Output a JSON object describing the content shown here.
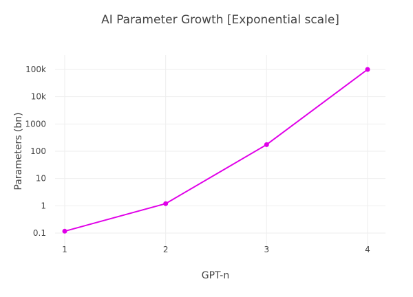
{
  "chart_data": {
    "type": "line",
    "title": "AI Parameter Growth [Exponential scale]",
    "xlabel": "GPT-n",
    "ylabel": "Parameters (bn)",
    "x": [
      1,
      2,
      3,
      4
    ],
    "series": [
      {
        "values": [
          0.117,
          1.2,
          175,
          100000
        ]
      }
    ],
    "x_ticks": [
      "1",
      "2",
      "3",
      "4"
    ],
    "y_scale": "log",
    "y_tick_values": [
      0.1,
      1,
      10,
      100,
      1000,
      10000,
      100000
    ],
    "y_tick_labels": [
      "0.1",
      "1",
      "10",
      "100",
      "1000",
      "10k",
      "100k"
    ],
    "line_color": "#e000e8",
    "grid": true,
    "legend": "none"
  }
}
